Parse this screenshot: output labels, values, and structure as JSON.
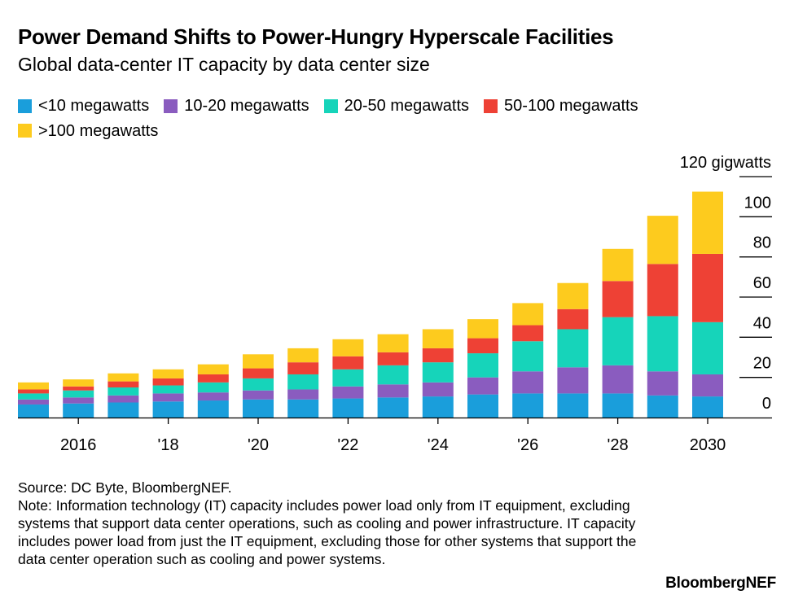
{
  "chart_data": {
    "type": "bar",
    "stacked": true,
    "title": "Power Demand Shifts to Power-Hungry Hyperscale Facilities",
    "subtitle": "Global data-center IT capacity by data center size",
    "x": [
      2015,
      2016,
      2017,
      2018,
      2019,
      2020,
      2021,
      2022,
      2023,
      2024,
      2025,
      2026,
      2027,
      2028,
      2029,
      2030
    ],
    "x_tick_labels": [
      {
        "year": 2016,
        "label": "2016"
      },
      {
        "year": 2018,
        "label": "'18"
      },
      {
        "year": 2020,
        "label": "'20"
      },
      {
        "year": 2022,
        "label": "'22"
      },
      {
        "year": 2024,
        "label": "'24"
      },
      {
        "year": 2026,
        "label": "'26"
      },
      {
        "year": 2028,
        "label": "'28"
      },
      {
        "year": 2030,
        "label": "'30"
      }
    ],
    "x_tick_override": {
      "2030": "2030"
    },
    "y_ticks": [
      {
        "value": 0,
        "label": "0"
      },
      {
        "value": 20,
        "label": "20"
      },
      {
        "value": 40,
        "label": "40"
      },
      {
        "value": 60,
        "label": "60"
      },
      {
        "value": 80,
        "label": "80"
      },
      {
        "value": 100,
        "label": "100"
      },
      {
        "value": 120,
        "label": "120 gigwatts"
      }
    ],
    "ylim": [
      0,
      120
    ],
    "ylabel": "gigwatts",
    "series": [
      {
        "name": "<10 megawatts",
        "color": "#1a9edb",
        "values": [
          6.5,
          7,
          7.5,
          8,
          8.5,
          9,
          9,
          9.5,
          10,
          10.5,
          11.5,
          12,
          12,
          12,
          11,
          10.5
        ]
      },
      {
        "name": "10-20 megawatts",
        "color": "#8a5cbf",
        "values": [
          2.5,
          3,
          3.5,
          4,
          4,
          4.5,
          5,
          6,
          6.5,
          7,
          8.5,
          11,
          13,
          14,
          12,
          11
        ]
      },
      {
        "name": "20-50 megawatts",
        "color": "#16d4ba",
        "values": [
          3,
          3.5,
          4,
          4,
          5,
          6,
          7.5,
          8.5,
          9.5,
          10,
          12,
          15,
          19,
          24,
          27.5,
          26
        ]
      },
      {
        "name": "50-100 megawatts",
        "color": "#ee4135",
        "values": [
          2,
          2,
          3,
          3.5,
          4,
          5,
          6,
          6.5,
          6.5,
          7,
          7.5,
          8,
          10,
          18,
          26,
          34
        ]
      },
      {
        "name": ">100 megawatts",
        "color": "#fdcb1e",
        "values": [
          3.5,
          3.5,
          4,
          4.5,
          5,
          7,
          7,
          8.5,
          9,
          9.5,
          9.5,
          11,
          13,
          16,
          24,
          31
        ]
      }
    ],
    "legend_position": "top-left",
    "grid": false
  },
  "footer": {
    "source": "Source: DC Byte, BloombergNEF.",
    "note": "Note: Information technology (IT) capacity includes power load only from IT equipment, excluding systems that support data center operations, such as cooling and power infrastructure. IT capacity includes power load from just the IT equipment, excluding those for other systems that support the data center operation such as cooling and power systems.",
    "logo": "BloombergNEF"
  }
}
